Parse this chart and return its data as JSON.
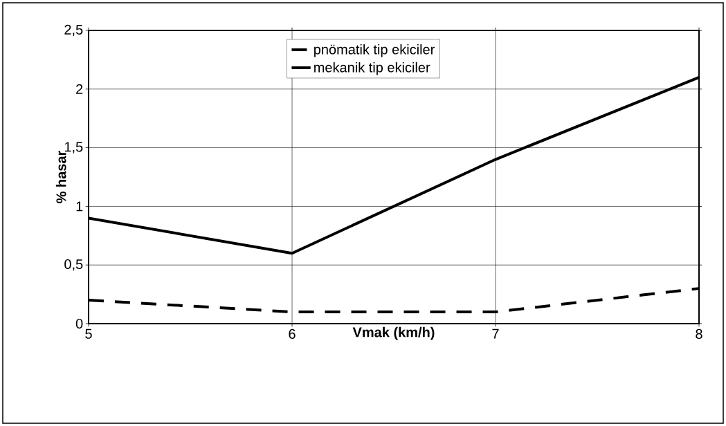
{
  "chart_data": {
    "type": "line",
    "xlabel": "Vmak (km/h)",
    "ylabel": "% hasar",
    "x": [
      5,
      6,
      7,
      8
    ],
    "series": [
      {
        "name": "pnömatik tip ekiciler",
        "color": "#000000",
        "line_style": "dashed",
        "values": [
          0.2,
          0.1,
          0.1,
          0.3
        ]
      },
      {
        "name": "mekanik tip ekiciler",
        "color": "#000000",
        "line_style": "solid",
        "values": [
          0.9,
          0.6,
          1.4,
          2.1
        ]
      }
    ],
    "xlim": [
      5,
      8
    ],
    "xticks": [
      5,
      6,
      7,
      8
    ],
    "ylim": [
      0,
      2.5
    ],
    "yticks": [
      0,
      {
        "value": 0.5,
        "label": "0,5"
      },
      1,
      {
        "value": 1.5,
        "label": "1,5"
      },
      2,
      {
        "value": 2.5,
        "label": "2,5"
      }
    ],
    "grid": true,
    "legend": "top",
    "marker": "none"
  }
}
